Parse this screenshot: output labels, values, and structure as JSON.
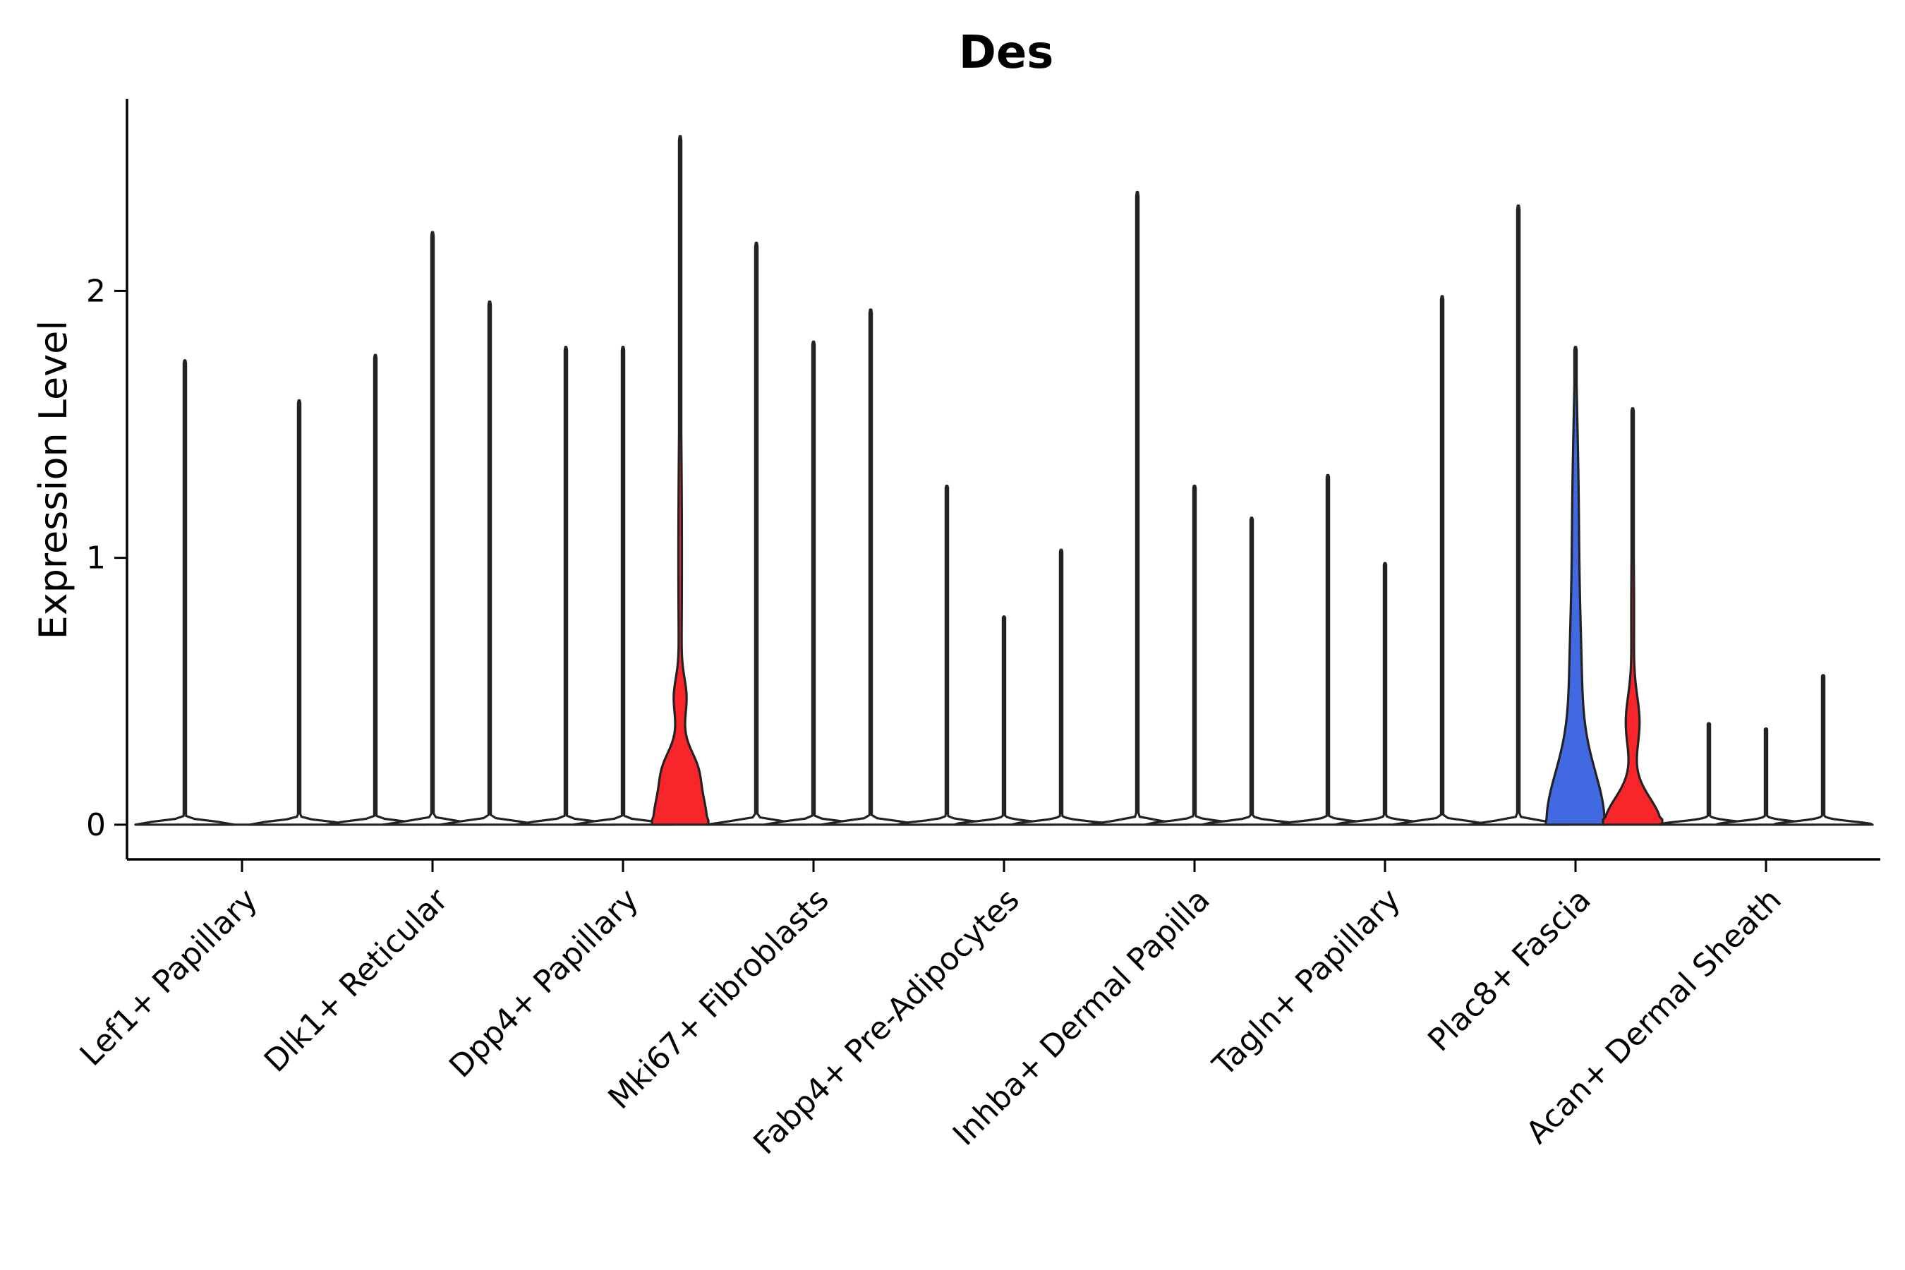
{
  "chart_data": {
    "type": "violin",
    "title": "Des",
    "ylabel": "Expression Level",
    "xlabel": "",
    "ylim": [
      -0.13,
      2.72
    ],
    "yticks": [
      0,
      1,
      2
    ],
    "categories": [
      "Lef1+ Papillary",
      "Dlk1+ Reticular",
      "Dpp4+ Papillary",
      "Mki67+ Fibroblasts",
      "Fabp4+ Pre-Adipocytes",
      "Inhba+ Dermal Papilla",
      "Tagln+ Papillary",
      "Plac8+ Fascia",
      "Acan+ Dermal Sheath"
    ],
    "groups_per_category": 3,
    "colors": {
      "blue": "#4169E1",
      "red": "#F8262A",
      "outline": "#222222"
    },
    "violins": [
      {
        "category": 0,
        "slot": 0,
        "max": 1.74,
        "shape": "flat"
      },
      {
        "category": 0,
        "slot": 1,
        "max": 0.0,
        "shape": "flat"
      },
      {
        "category": 0,
        "slot": 2,
        "max": 1.59,
        "shape": "flat"
      },
      {
        "category": 1,
        "slot": 0,
        "max": 1.76,
        "shape": "flat"
      },
      {
        "category": 1,
        "slot": 1,
        "max": 2.22,
        "shape": "flat"
      },
      {
        "category": 1,
        "slot": 2,
        "max": 1.96,
        "shape": "flat"
      },
      {
        "category": 2,
        "slot": 0,
        "max": 1.79,
        "shape": "flat"
      },
      {
        "category": 2,
        "slot": 1,
        "max": 1.79,
        "shape": "flat"
      },
      {
        "category": 2,
        "slot": 2,
        "max": 2.58,
        "shape": "dpp4",
        "color": "red"
      },
      {
        "category": 3,
        "slot": 0,
        "max": 2.18,
        "shape": "flat"
      },
      {
        "category": 3,
        "slot": 1,
        "max": 1.81,
        "shape": "flat"
      },
      {
        "category": 3,
        "slot": 2,
        "max": 1.93,
        "shape": "flat"
      },
      {
        "category": 4,
        "slot": 0,
        "max": 1.27,
        "shape": "flat"
      },
      {
        "category": 4,
        "slot": 1,
        "max": 0.78,
        "shape": "flat"
      },
      {
        "category": 4,
        "slot": 2,
        "max": 1.03,
        "shape": "flat"
      },
      {
        "category": 5,
        "slot": 0,
        "max": 2.37,
        "shape": "flat"
      },
      {
        "category": 5,
        "slot": 1,
        "max": 1.27,
        "shape": "flat"
      },
      {
        "category": 5,
        "slot": 2,
        "max": 1.15,
        "shape": "flat"
      },
      {
        "category": 6,
        "slot": 0,
        "max": 1.31,
        "shape": "flat"
      },
      {
        "category": 6,
        "slot": 1,
        "max": 0.98,
        "shape": "flat"
      },
      {
        "category": 6,
        "slot": 2,
        "max": 1.98,
        "shape": "flat"
      },
      {
        "category": 7,
        "slot": 0,
        "max": 2.32,
        "shape": "flat"
      },
      {
        "category": 7,
        "slot": 1,
        "max": 1.79,
        "shape": "plac8blue",
        "color": "blue"
      },
      {
        "category": 7,
        "slot": 2,
        "max": 1.56,
        "shape": "plac8red",
        "color": "red"
      },
      {
        "category": 8,
        "slot": 0,
        "max": 0.38,
        "shape": "flat"
      },
      {
        "category": 8,
        "slot": 1,
        "max": 0.36,
        "shape": "flat"
      },
      {
        "category": 8,
        "slot": 2,
        "max": 0.56,
        "shape": "flat"
      }
    ]
  }
}
